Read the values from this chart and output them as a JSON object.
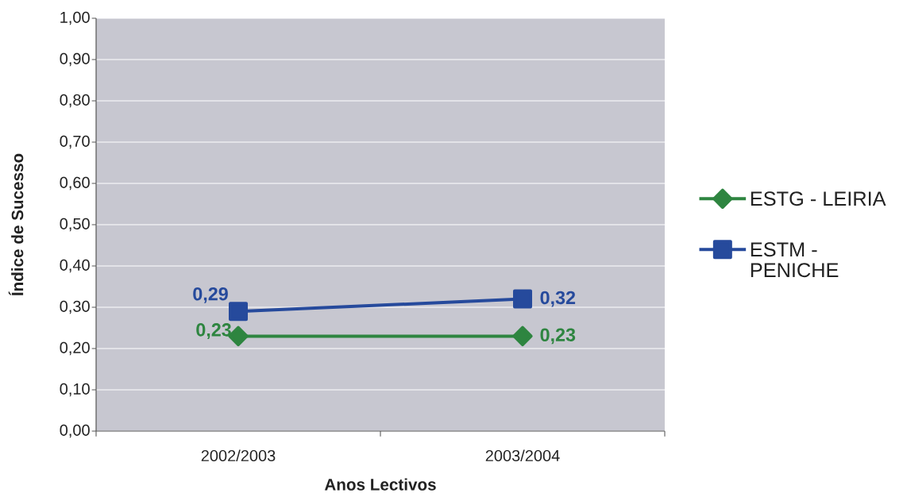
{
  "chart_data": {
    "type": "line",
    "xlabel": "Anos Lectivos",
    "ylabel": "Índice de Sucesso",
    "categories": [
      "2002/2003",
      "2003/2004"
    ],
    "series": [
      {
        "name": "ESTG - LEIRIA",
        "color": "#2e8540",
        "marker": "diamond",
        "values": [
          0.23,
          0.23
        ],
        "value_labels": [
          "0,23",
          "0,23"
        ]
      },
      {
        "name": "ESTM - PENICHE",
        "color": "#264a9c",
        "marker": "square",
        "values": [
          0.29,
          0.32
        ],
        "value_labels": [
          "0,29",
          "0,32"
        ]
      }
    ],
    "ylim": [
      0,
      1
    ],
    "yticks": [
      {
        "value": 0,
        "label": "0,00"
      },
      {
        "value": 0.1,
        "label": "0,10"
      },
      {
        "value": 0.2,
        "label": "0,20"
      },
      {
        "value": 0.3,
        "label": "0,30"
      },
      {
        "value": 0.4,
        "label": "0,40"
      },
      {
        "value": 0.5,
        "label": "0,50"
      },
      {
        "value": 0.6,
        "label": "0,60"
      },
      {
        "value": 0.7,
        "label": "0,70"
      },
      {
        "value": 0.8,
        "label": "0,80"
      },
      {
        "value": 0.9,
        "label": "0,90"
      },
      {
        "value": 1,
        "label": "1,00"
      }
    ],
    "grid": "y",
    "legend": "right",
    "line_style": "solid"
  }
}
